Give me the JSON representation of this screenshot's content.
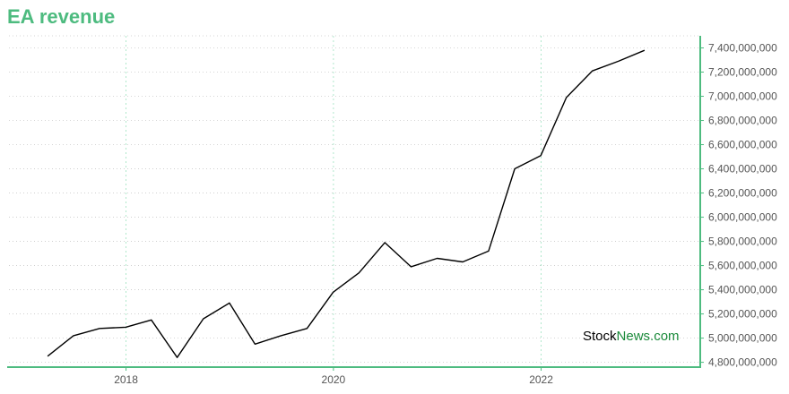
{
  "colors": {
    "accent": "#4dbb7f",
    "line": "#000000",
    "grid": "#a8e6c6",
    "axis": "#4dbb7f",
    "watermark_dark": "#000000",
    "watermark_brand": "#1a8a3a"
  },
  "chart_data": {
    "type": "line",
    "title": "EA revenue",
    "xlabel": "",
    "ylabel": "",
    "x_tick_labels": [
      "2018",
      "2020",
      "2022"
    ],
    "x_ticks": [
      "2018-01-01",
      "2020-01-01",
      "2022-01-01"
    ],
    "y_ticks": [
      4800000000,
      5000000000,
      5200000000,
      5400000000,
      5600000000,
      5800000000,
      6000000000,
      6200000000,
      6400000000,
      6600000000,
      6800000000,
      7000000000,
      7200000000,
      7400000000
    ],
    "y_tick_labels": [
      "4,800,000,000",
      "5,000,000,000",
      "5,200,000,000",
      "5,400,000,000",
      "5,600,000,000",
      "5,800,000,000",
      "6,000,000,000",
      "6,200,000,000",
      "6,400,000,000",
      "6,600,000,000",
      "6,800,000,000",
      "7,000,000,000",
      "7,200,000,000",
      "7,400,000,000"
    ],
    "ylim": [
      4760000000,
      7500000000
    ],
    "xlim": [
      "2016-11-15",
      "2023-07-15"
    ],
    "grid": true,
    "y_axis_position": "right",
    "x": [
      "2017-03-31",
      "2017-06-30",
      "2017-09-30",
      "2017-12-31",
      "2018-03-31",
      "2018-06-30",
      "2018-09-30",
      "2018-12-31",
      "2019-03-31",
      "2019-06-30",
      "2019-09-30",
      "2019-12-31",
      "2020-03-31",
      "2020-06-30",
      "2020-09-30",
      "2020-12-31",
      "2021-03-31",
      "2021-06-30",
      "2021-09-30",
      "2021-12-31",
      "2022-03-31",
      "2022-06-30",
      "2022-09-30",
      "2022-12-31"
    ],
    "values": [
      4850000000,
      5020000000,
      5080000000,
      5090000000,
      5150000000,
      4840000000,
      5160000000,
      5290000000,
      4950000000,
      5020000000,
      5080000000,
      5380000000,
      5540000000,
      5790000000,
      5590000000,
      5660000000,
      5630000000,
      5720000000,
      6400000000,
      6510000000,
      6990000000,
      7210000000,
      7290000000,
      7380000000
    ]
  },
  "watermark": {
    "part1": "Stock",
    "part2": "News",
    "part3": ".com"
  }
}
